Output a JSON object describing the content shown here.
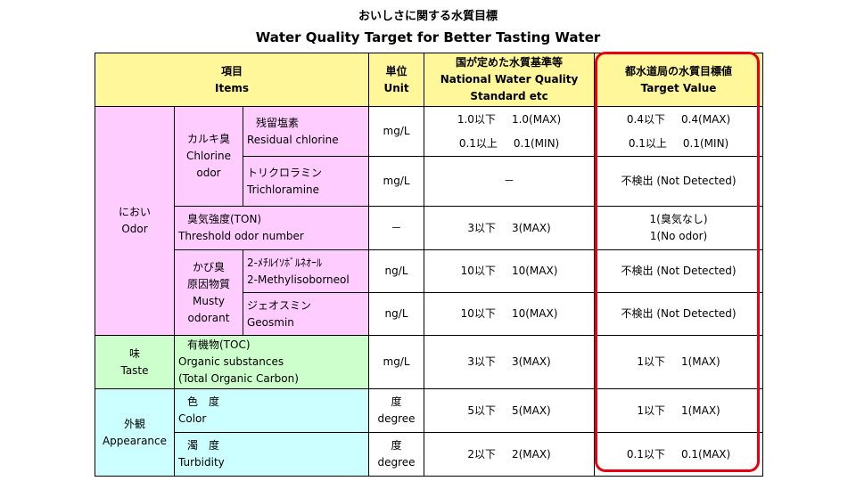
{
  "title": {
    "jp": "おいしさに関する水質目標",
    "en": "Water Quality Target for Better Tasting Water"
  },
  "header": {
    "items": [
      "項目",
      "Items"
    ],
    "unit": [
      "単位",
      "Unit"
    ],
    "national": [
      "国が定めた水質基準等",
      "National Water Quality",
      "Standard etc"
    ],
    "target": [
      "都水道局の水質目標値",
      "Target Value"
    ]
  },
  "categories": {
    "odor": [
      "におい",
      "Odor"
    ],
    "taste": [
      "味",
      "Taste"
    ],
    "appearance": [
      "外観",
      "Appearance"
    ]
  },
  "subgroups": {
    "chlorine": [
      "カルキ臭",
      "Chlorine",
      "odor"
    ],
    "musty": [
      "かび臭",
      "原因物質",
      "Musty",
      "odorant"
    ]
  },
  "rows": {
    "residual_chlorine": {
      "name": [
        "残留塩素",
        "Residual chlorine"
      ],
      "unit": "mg/L",
      "std": [
        [
          "1.0以下",
          "1.0(MAX)"
        ],
        [
          "0.1以上",
          "0.1(MIN)"
        ]
      ],
      "target": [
        [
          "0.4以下",
          "0.4(MAX)"
        ],
        [
          "0.1以上",
          "0.1(MIN)"
        ]
      ]
    },
    "trichloramine": {
      "name": [
        "トリクロラミン",
        "Trichloramine"
      ],
      "unit": "mg/L",
      "std": "－",
      "target": "不検出 (Not Detected)"
    },
    "threshold_odor": {
      "name": [
        "臭気強度(TON)",
        "Threshold odor number"
      ],
      "unit": "－",
      "std": [
        "3以下",
        "3(MAX)"
      ],
      "target": [
        "1(臭気なし)",
        "1(No odor)"
      ]
    },
    "mib": {
      "name": [
        "2-ﾒﾁﾙｲｿﾎﾞﾙﾈｵｰﾙ",
        "2-Methylisoborneol"
      ],
      "unit": "ng/L",
      "std": [
        "10以下",
        "10(MAX)"
      ],
      "target": "不検出 (Not Detected)"
    },
    "geosmin": {
      "name": [
        "ジェオスミン",
        "Geosmin"
      ],
      "unit": "ng/L",
      "std": [
        "10以下",
        "10(MAX)"
      ],
      "target": "不検出 (Not Detected)"
    },
    "toc": {
      "name": [
        "有機物(TOC)",
        "Organic substances",
        "(Total Organic Carbon)"
      ],
      "unit": "mg/L",
      "std": [
        "3以下",
        "3(MAX)"
      ],
      "target": [
        "1以下",
        "1(MAX)"
      ]
    },
    "color": {
      "name": [
        "色　度",
        "Color"
      ],
      "unit": [
        "度",
        "degree"
      ],
      "std": [
        "5以下",
        "5(MAX)"
      ],
      "target": [
        "1以下",
        "1(MAX)"
      ]
    },
    "turbidity": {
      "name": [
        "濁　度",
        "Turbidity"
      ],
      "unit": [
        "度",
        "degree"
      ],
      "std": [
        "2以下",
        "2(MAX)"
      ],
      "target": [
        "0.1以下",
        "0.1(MAX)"
      ]
    }
  },
  "colors": {
    "header": "#fff799",
    "odor": "#ffccff",
    "taste": "#ccffcc",
    "appearance": "#ccffff",
    "highlight": "#e60012"
  }
}
